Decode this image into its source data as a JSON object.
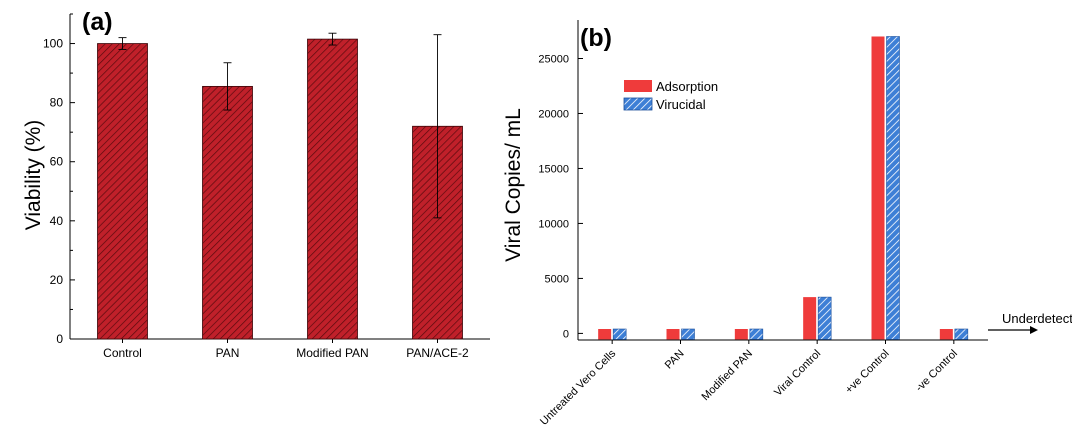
{
  "chart_data": [
    {
      "type": "bar",
      "panel_label": "(a)",
      "ylabel": "Viability (%)",
      "xlabel": "",
      "categories": [
        "Control",
        "PAN",
        "Modified PAN",
        "PAN/ACE-2"
      ],
      "values": [
        100,
        85.5,
        101.5,
        72
      ],
      "errors": [
        2,
        8,
        2,
        31
      ],
      "ylim": [
        0,
        110
      ],
      "yticks": [
        0,
        20,
        40,
        60,
        80,
        100
      ],
      "bar_color": "#c0202a",
      "hatch": true,
      "grid": false
    },
    {
      "type": "bar",
      "panel_label": "(b)",
      "ylabel": "Viral Copies/ mL",
      "xlabel": "",
      "categories": [
        "Untreated Vero Cells",
        "PAN",
        "Modified PAN",
        "Viral Control",
        "+ve Control",
        "-ve Control"
      ],
      "series": [
        {
          "name": "Adsorption",
          "values": [
            0,
            0,
            0,
            3300,
            27000,
            0
          ],
          "color": "#ef3b3b"
        },
        {
          "name": "Virucidal",
          "values": [
            0,
            0,
            0,
            3300,
            27000,
            0
          ],
          "color": "#3d7fd6"
        }
      ],
      "ylim": [
        -600,
        28500
      ],
      "yticks": [
        0,
        5000,
        10000,
        15000,
        20000,
        25000
      ],
      "legend_position": "top-left",
      "annotation": "Underdetected",
      "grid": false
    }
  ]
}
